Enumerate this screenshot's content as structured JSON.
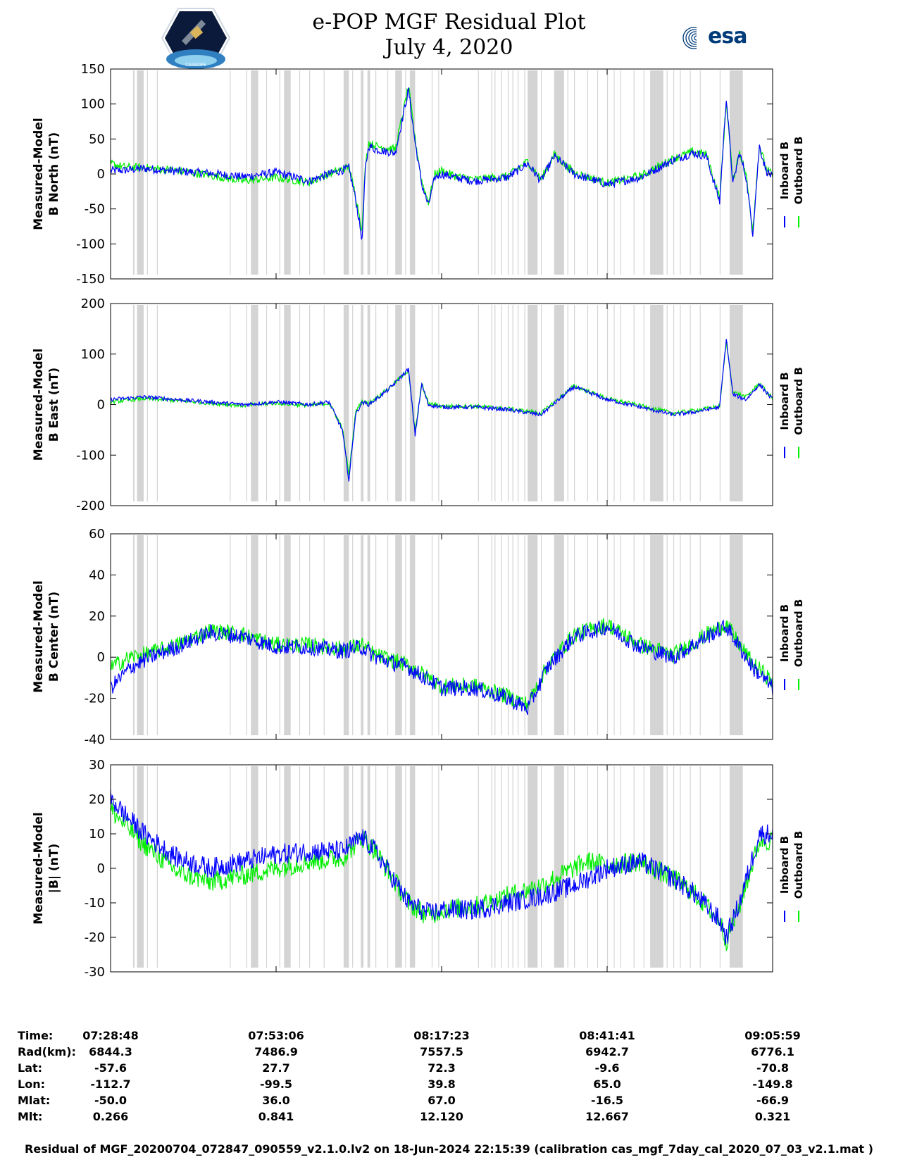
{
  "title": {
    "line1": "e-POP MGF Residual Plot",
    "line2": "July 4, 2020"
  },
  "logos": {
    "left": "CASSIOPE",
    "right": "esa"
  },
  "colors": {
    "inboard": "#0000ff",
    "outboard": "#00ee00",
    "gap_shading": "#d4d4d4",
    "axis": "#000000"
  },
  "legend": {
    "inboard": "Inboard B",
    "outboard": "Outboard B"
  },
  "chart_data": [
    {
      "type": "line",
      "ylabel_line1": "Measured-Model",
      "ylabel_line2": "B North (nT)",
      "ylim": [
        -150,
        150
      ],
      "yticks": [
        150,
        100,
        50,
        0,
        -50,
        -100,
        -150
      ],
      "series": [
        {
          "name": "Inboard B",
          "x": [
            0,
            0.02,
            0.05,
            0.1,
            0.15,
            0.2,
            0.25,
            0.3,
            0.33,
            0.36,
            0.37,
            0.38,
            0.385,
            0.39,
            0.4,
            0.43,
            0.45,
            0.46,
            0.47,
            0.48,
            0.49,
            0.5,
            0.52,
            0.55,
            0.6,
            0.63,
            0.65,
            0.67,
            0.7,
            0.75,
            0.8,
            0.85,
            0.88,
            0.9,
            0.92,
            0.93,
            0.94,
            0.95,
            0.96,
            0.97,
            0.98,
            0.99,
            1.0
          ],
          "y": [
            5,
            5,
            8,
            4,
            1,
            -4,
            2,
            -10,
            0,
            8,
            -35,
            -95,
            10,
            40,
            35,
            30,
            120,
            45,
            -15,
            -45,
            -5,
            0,
            -5,
            -10,
            -5,
            15,
            -10,
            25,
            0,
            -15,
            -5,
            20,
            30,
            25,
            -40,
            110,
            -15,
            30,
            -5,
            -85,
            40,
            5,
            -5
          ]
        },
        {
          "name": "Outboard B",
          "x": [
            0,
            0.02,
            0.05,
            0.1,
            0.15,
            0.2,
            0.25,
            0.3,
            0.33,
            0.36,
            0.37,
            0.38,
            0.385,
            0.39,
            0.4,
            0.43,
            0.45,
            0.46,
            0.47,
            0.48,
            0.49,
            0.5,
            0.52,
            0.55,
            0.6,
            0.63,
            0.65,
            0.67,
            0.7,
            0.75,
            0.8,
            0.85,
            0.88,
            0.9,
            0.92,
            0.93,
            0.94,
            0.95,
            0.96,
            0.97,
            0.98,
            0.99,
            1.0
          ],
          "y": [
            15,
            10,
            9,
            5,
            -2,
            -10,
            -5,
            -12,
            0,
            10,
            -30,
            -80,
            15,
            45,
            40,
            35,
            125,
            50,
            -10,
            -40,
            0,
            5,
            -3,
            -8,
            -3,
            18,
            -8,
            28,
            2,
            -13,
            -3,
            22,
            32,
            28,
            -35,
            105,
            -10,
            33,
            -2,
            -80,
            42,
            8,
            -2
          ]
        }
      ]
    },
    {
      "type": "line",
      "ylabel_line1": "Measured-Model",
      "ylabel_line2": "B East (nT)",
      "ylim": [
        -200,
        200
      ],
      "yticks": [
        200,
        100,
        0,
        -100,
        -200
      ],
      "series": [
        {
          "name": "Inboard B",
          "x": [
            0,
            0.05,
            0.1,
            0.15,
            0.2,
            0.25,
            0.3,
            0.33,
            0.35,
            0.36,
            0.37,
            0.38,
            0.39,
            0.4,
            0.42,
            0.45,
            0.46,
            0.47,
            0.48,
            0.5,
            0.55,
            0.6,
            0.65,
            0.7,
            0.75,
            0.8,
            0.85,
            0.88,
            0.9,
            0.92,
            0.93,
            0.94,
            0.96,
            0.98,
            1.0
          ],
          "y": [
            10,
            15,
            10,
            5,
            0,
            5,
            0,
            5,
            -50,
            -150,
            -20,
            5,
            0,
            10,
            30,
            70,
            -60,
            40,
            0,
            -5,
            -5,
            -10,
            -20,
            35,
            10,
            -5,
            -20,
            -15,
            -10,
            -5,
            130,
            20,
            10,
            40,
            10
          ]
        },
        {
          "name": "Outboard B",
          "x": [
            0,
            0.05,
            0.1,
            0.15,
            0.2,
            0.25,
            0.3,
            0.33,
            0.35,
            0.36,
            0.37,
            0.38,
            0.39,
            0.4,
            0.42,
            0.45,
            0.46,
            0.47,
            0.48,
            0.5,
            0.55,
            0.6,
            0.65,
            0.7,
            0.75,
            0.8,
            0.85,
            0.88,
            0.9,
            0.92,
            0.93,
            0.94,
            0.96,
            0.98,
            1.0
          ],
          "y": [
            5,
            12,
            8,
            3,
            -2,
            3,
            -2,
            3,
            -45,
            -140,
            -15,
            7,
            2,
            12,
            32,
            68,
            -55,
            42,
            2,
            -3,
            -3,
            -8,
            -17,
            37,
            12,
            -2,
            -17,
            -12,
            -8,
            -3,
            125,
            25,
            15,
            42,
            12
          ]
        }
      ]
    },
    {
      "type": "line",
      "ylabel_line1": "Measured-Model",
      "ylabel_line2": "B Center (nT)",
      "ylim": [
        -40,
        60
      ],
      "yticks": [
        60,
        40,
        20,
        0,
        -20,
        -40
      ],
      "series": [
        {
          "name": "Inboard B",
          "x": [
            0,
            0.03,
            0.06,
            0.1,
            0.15,
            0.2,
            0.25,
            0.3,
            0.35,
            0.38,
            0.4,
            0.45,
            0.5,
            0.55,
            0.6,
            0.63,
            0.66,
            0.7,
            0.75,
            0.8,
            0.85,
            0.9,
            0.93,
            0.95,
            0.97,
            1.0
          ],
          "y": [
            -15,
            -5,
            0,
            5,
            12,
            10,
            5,
            5,
            3,
            5,
            0,
            -5,
            -15,
            -15,
            -20,
            -25,
            -5,
            10,
            15,
            5,
            0,
            10,
            15,
            5,
            -5,
            -15
          ]
        },
        {
          "name": "Outboard B",
          "x": [
            0,
            0.03,
            0.06,
            0.1,
            0.15,
            0.2,
            0.25,
            0.3,
            0.35,
            0.38,
            0.4,
            0.45,
            0.5,
            0.55,
            0.6,
            0.63,
            0.66,
            0.7,
            0.75,
            0.8,
            0.85,
            0.9,
            0.93,
            0.95,
            0.97,
            1.0
          ],
          "y": [
            -5,
            0,
            2,
            6,
            13,
            11,
            6,
            6,
            4,
            6,
            1,
            -4,
            -14,
            -14,
            -19,
            -23,
            -4,
            11,
            16,
            6,
            1,
            11,
            16,
            6,
            -3,
            -12
          ]
        }
      ]
    },
    {
      "type": "line",
      "ylabel_line1": "Measured-Model",
      "ylabel_line2": "|B| (nT)",
      "ylim": [
        -30,
        30
      ],
      "yticks": [
        30,
        20,
        10,
        0,
        -10,
        -20,
        -30
      ],
      "series": [
        {
          "name": "Inboard B",
          "x": [
            0,
            0.05,
            0.1,
            0.15,
            0.2,
            0.25,
            0.3,
            0.35,
            0.38,
            0.4,
            0.45,
            0.48,
            0.5,
            0.55,
            0.6,
            0.65,
            0.7,
            0.72,
            0.75,
            0.8,
            0.85,
            0.88,
            0.92,
            0.93,
            0.95,
            0.98,
            1.0
          ],
          "y": [
            20,
            10,
            3,
            0,
            2,
            4,
            5,
            5,
            9,
            5,
            -10,
            -13,
            -12,
            -12,
            -10,
            -8,
            -5,
            -3,
            0,
            2,
            -3,
            -7,
            -15,
            -20,
            -10,
            10,
            10
          ]
        },
        {
          "name": "Outboard B",
          "x": [
            0,
            0.05,
            0.1,
            0.15,
            0.2,
            0.25,
            0.3,
            0.35,
            0.38,
            0.4,
            0.45,
            0.48,
            0.5,
            0.55,
            0.6,
            0.65,
            0.7,
            0.72,
            0.75,
            0.8,
            0.85,
            0.88,
            0.92,
            0.93,
            0.95,
            0.98,
            1.0
          ],
          "y": [
            17,
            7,
            -1,
            -4,
            -2,
            0,
            2,
            3,
            9,
            5,
            -10,
            -14,
            -12,
            -11,
            -8,
            -5,
            0,
            2,
            1,
            2,
            -3,
            -7,
            -15,
            -21,
            -11,
            8,
            8
          ]
        }
      ]
    }
  ],
  "gap_bands": [
    [
      0.034,
      0.036
    ],
    [
      0.04,
      0.05
    ],
    [
      0.055,
      0.056
    ],
    [
      0.07,
      0.071
    ],
    [
      0.18,
      0.181
    ],
    [
      0.205,
      0.206
    ],
    [
      0.212,
      0.223
    ],
    [
      0.235,
      0.236
    ],
    [
      0.255,
      0.256
    ],
    [
      0.262,
      0.272
    ],
    [
      0.285,
      0.286
    ],
    [
      0.3,
      0.301
    ],
    [
      0.322,
      0.323
    ],
    [
      0.352,
      0.36
    ],
    [
      0.365,
      0.366
    ],
    [
      0.378,
      0.382
    ],
    [
      0.388,
      0.392
    ],
    [
      0.4,
      0.401
    ],
    [
      0.418,
      0.419
    ],
    [
      0.43,
      0.44
    ],
    [
      0.445,
      0.446
    ],
    [
      0.452,
      0.46
    ],
    [
      0.485,
      0.486
    ],
    [
      0.495,
      0.496
    ],
    [
      0.555,
      0.556
    ],
    [
      0.575,
      0.576
    ],
    [
      0.58,
      0.581
    ],
    [
      0.59,
      0.591
    ],
    [
      0.6,
      0.601
    ],
    [
      0.607,
      0.608
    ],
    [
      0.615,
      0.616
    ],
    [
      0.625,
      0.626
    ],
    [
      0.63,
      0.645
    ],
    [
      0.65,
      0.651
    ],
    [
      0.67,
      0.685
    ],
    [
      0.69,
      0.691
    ],
    [
      0.7,
      0.701
    ],
    [
      0.72,
      0.721
    ],
    [
      0.735,
      0.736
    ],
    [
      0.75,
      0.751
    ],
    [
      0.76,
      0.761
    ],
    [
      0.77,
      0.771
    ],
    [
      0.79,
      0.791
    ],
    [
      0.805,
      0.806
    ],
    [
      0.815,
      0.835
    ],
    [
      0.84,
      0.841
    ],
    [
      0.85,
      0.851
    ],
    [
      0.86,
      0.861
    ],
    [
      0.875,
      0.876
    ],
    [
      0.89,
      0.891
    ],
    [
      0.92,
      0.921
    ],
    [
      0.935,
      0.955
    ]
  ],
  "time_axis": {
    "xtick_fractions": [
      0,
      0.25,
      0.5,
      0.75,
      1
    ]
  },
  "info_table": {
    "rows": [
      {
        "label": "Time:",
        "values": [
          "07:28:48",
          "07:53:06",
          "08:17:23",
          "08:41:41",
          "09:05:59"
        ]
      },
      {
        "label": "Rad(km):",
        "values": [
          "6844.3",
          "7486.9",
          "7557.5",
          "6942.7",
          "6776.1"
        ]
      },
      {
        "label": "Lat:",
        "values": [
          "-57.6",
          "27.7",
          "72.3",
          "-9.6",
          "-70.8"
        ]
      },
      {
        "label": "Lon:",
        "values": [
          "-112.7",
          "-99.5",
          "39.8",
          "65.0",
          "-149.8"
        ]
      },
      {
        "label": "Mlat:",
        "values": [
          "-50.0",
          "36.0",
          "67.0",
          "-16.5",
          "-66.9"
        ]
      },
      {
        "label": "Mlt:",
        "values": [
          "0.266",
          "0.841",
          "12.120",
          "12.667",
          "0.321"
        ]
      }
    ]
  },
  "footer": "Residual of MGF_20200704_072847_090559_v2.1.0.lv2 on 18-Jun-2024 22:15:39 (calibration cas_mgf_7day_cal_2020_07_03_v2.1.mat )"
}
